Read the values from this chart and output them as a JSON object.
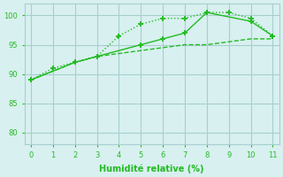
{
  "line1_x": [
    0,
    1,
    2,
    3,
    4,
    5,
    6,
    7,
    8,
    9,
    10,
    11
  ],
  "line1_y": [
    89,
    91,
    92,
    93,
    96.5,
    98.5,
    99.5,
    99.5,
    100.5,
    100.5,
    99.5,
    96.5
  ],
  "line1_style": "dotted",
  "line1_markers_x": [
    0,
    1,
    2,
    3,
    4,
    5,
    6,
    7,
    8,
    9,
    10,
    11
  ],
  "line1_markers_y": [
    89,
    91,
    92,
    93,
    96.5,
    98.5,
    99.5,
    99.5,
    100.5,
    100.5,
    99.5,
    96.5
  ],
  "line2_x": [
    0,
    2,
    3,
    5,
    6,
    7,
    8,
    10,
    11
  ],
  "line2_y": [
    89,
    92,
    93,
    95,
    96,
    97,
    100.5,
    99,
    96.5
  ],
  "line2_style": "solid",
  "line3_x": [
    0,
    2,
    3,
    4,
    5,
    6,
    7,
    8,
    9,
    10,
    11
  ],
  "line3_y": [
    89,
    92,
    93,
    93.5,
    94,
    94.5,
    95,
    95,
    95.5,
    96,
    96
  ],
  "line3_style": "dashed",
  "line_color": "#22bb22",
  "bg_color": "#d8f0f0",
  "grid_color": "#a8cece",
  "xlabel": "Humidité relative (%)",
  "xlim": [
    -0.3,
    11.3
  ],
  "ylim": [
    78,
    102
  ],
  "yticks": [
    80,
    85,
    90,
    95,
    100
  ],
  "xticks": [
    0,
    1,
    2,
    3,
    4,
    5,
    6,
    7,
    8,
    9,
    10,
    11
  ],
  "marker": "+",
  "markersize": 5,
  "linewidth": 1.0
}
